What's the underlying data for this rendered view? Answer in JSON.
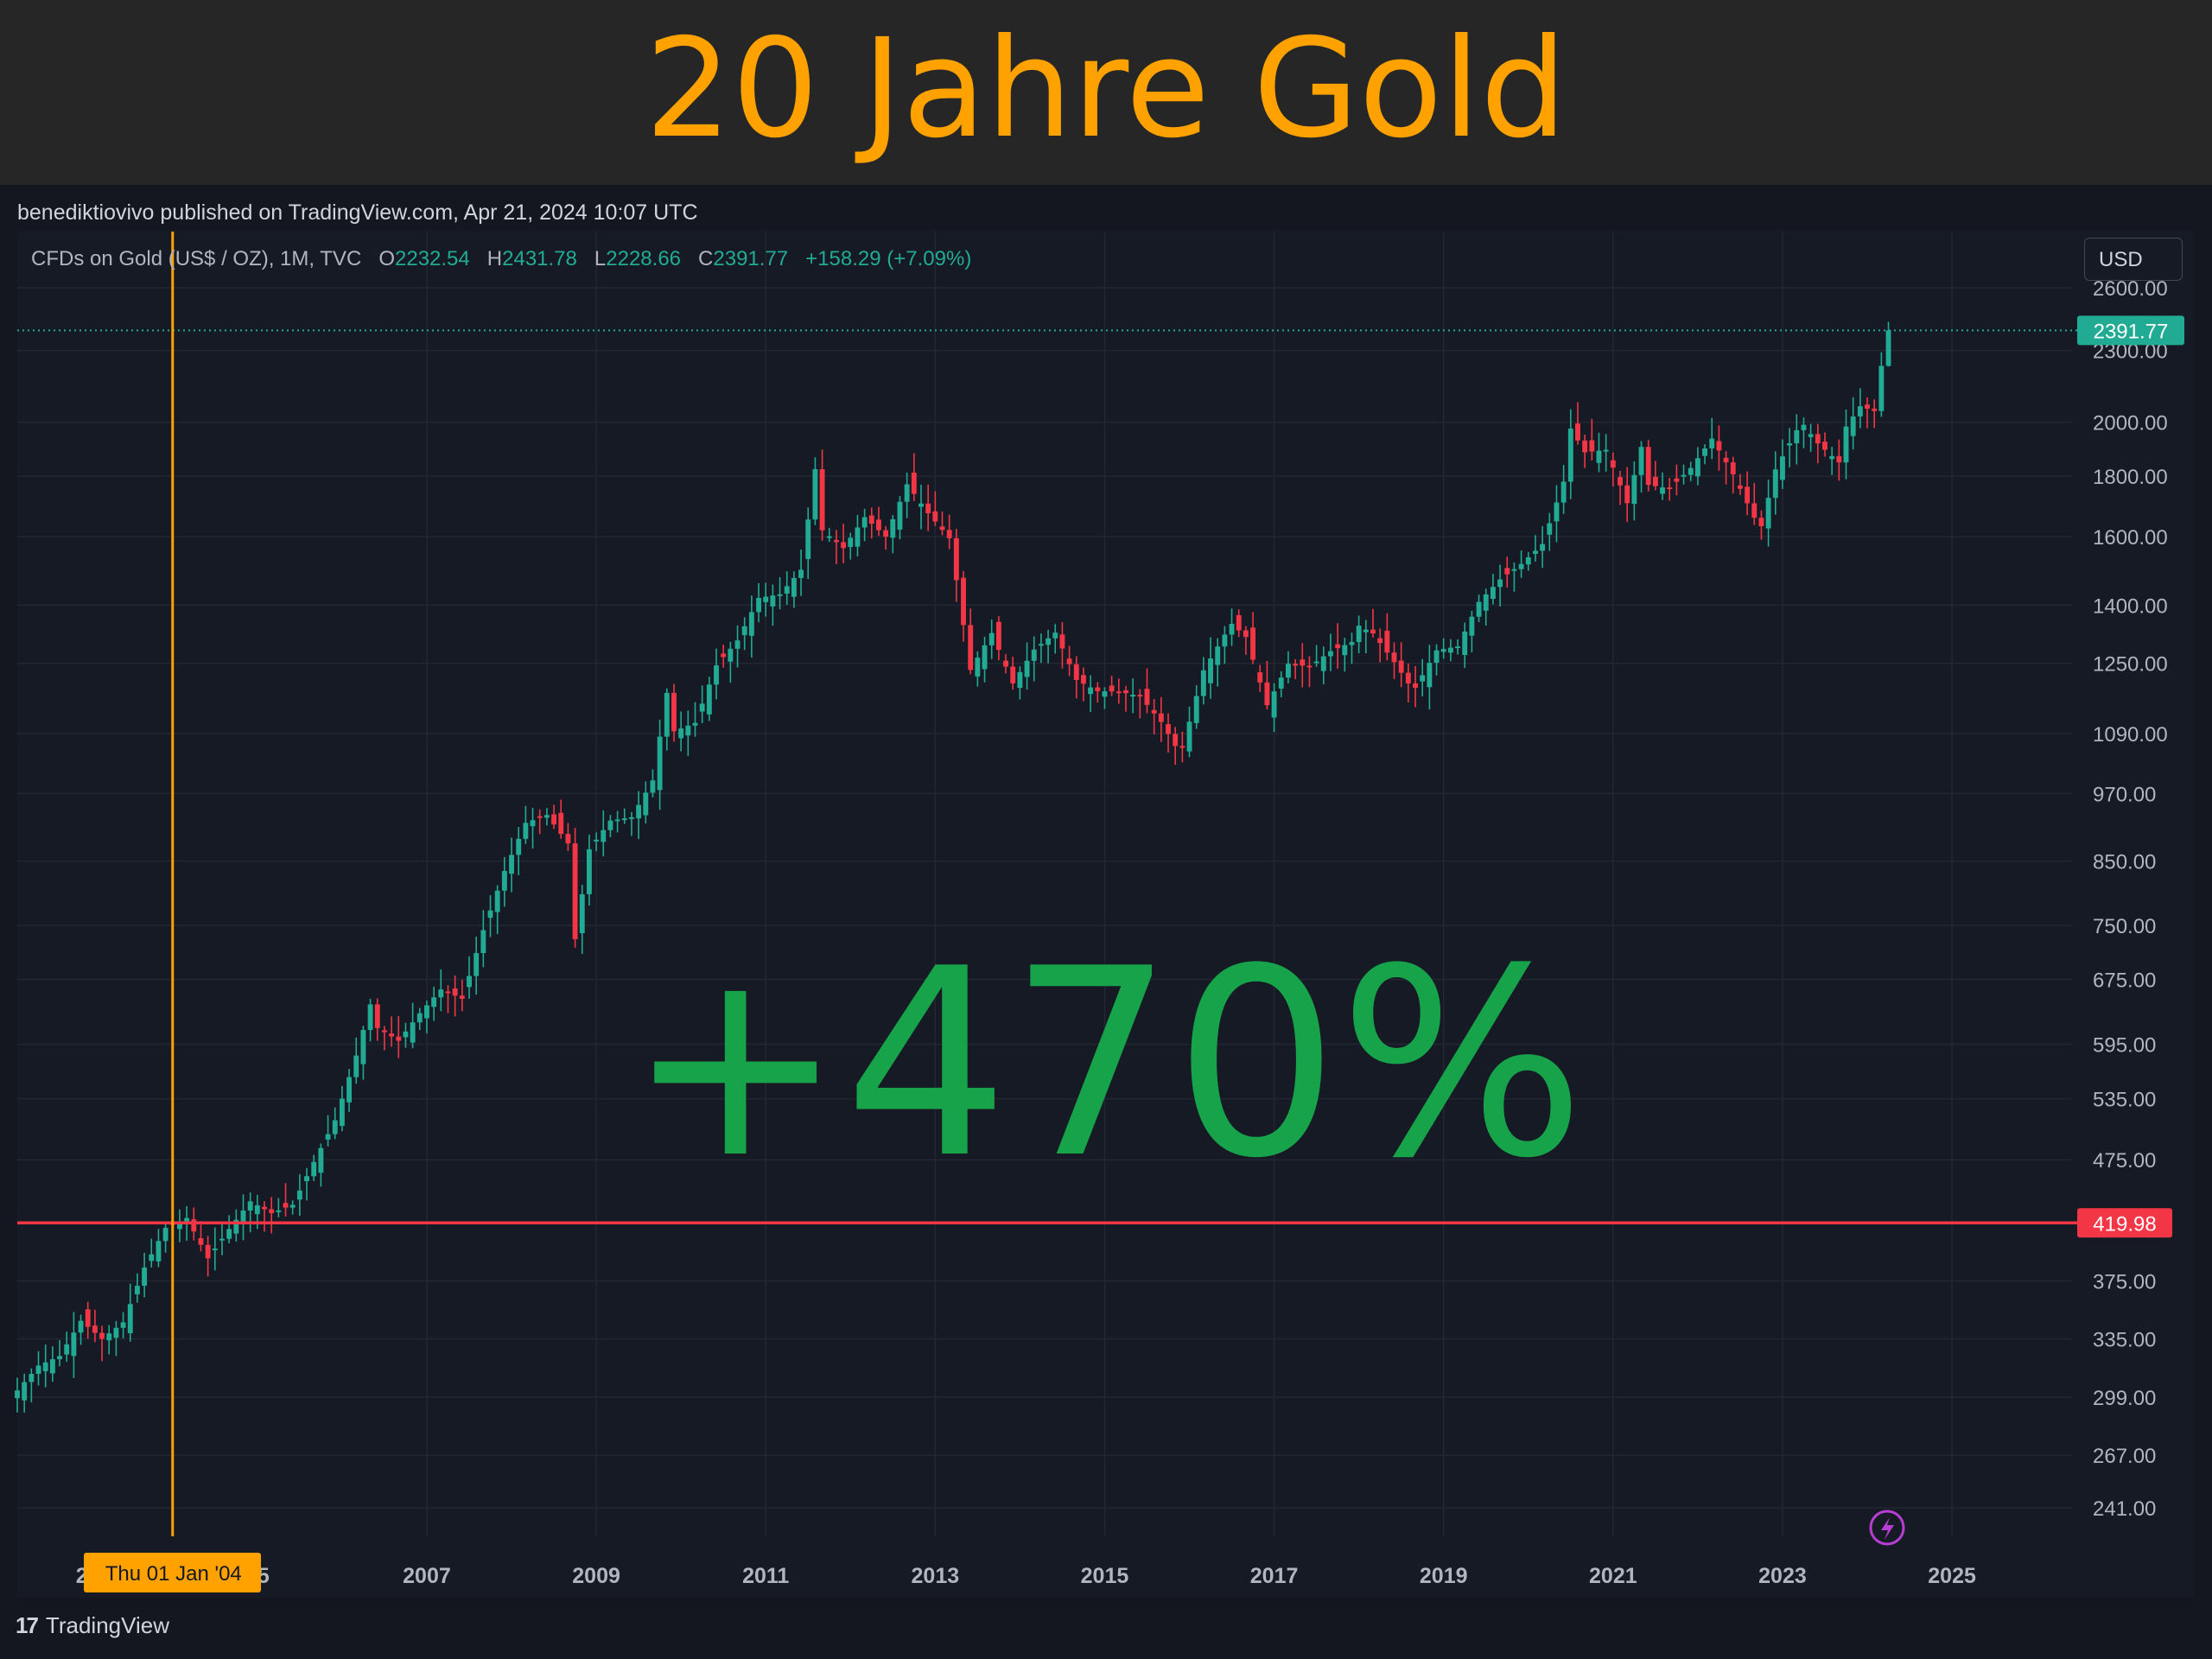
{
  "header": {
    "title": "20 Jahre Gold"
  },
  "publisher_line": "benediktiovivo published on TradingView.com, Apr 21, 2024 10:07 UTC",
  "legend": {
    "symbol": "CFDs on Gold (US$ / OZ), 1M, TVC",
    "open_label": "O",
    "open": "2232.54",
    "high_label": "H",
    "high": "2431.78",
    "low_label": "L",
    "low": "2228.66",
    "close_label": "C",
    "close": "2391.77",
    "change": "+158.29 (+7.09%)"
  },
  "currency_button": "USD",
  "brand": {
    "logo_text": "TradingView"
  },
  "colors": {
    "up": "#22ab94",
    "down": "#f23645",
    "accent": "#ffa200",
    "horizontal_line": "#f23645",
    "big_text": "#16a34a"
  },
  "chart_data": {
    "type": "candlestick",
    "interval": "1M",
    "y_scale": "log",
    "x_range": [
      "2002-03",
      "2026-06"
    ],
    "ylim": [
      228,
      2900
    ],
    "y_ticks": [
      "241.00",
      "267.00",
      "299.00",
      "335.00",
      "375.00",
      "419.98",
      "475.00",
      "535.00",
      "595.00",
      "675.00",
      "750.00",
      "850.00",
      "970.00",
      "1090.00",
      "1250.00",
      "1400.00",
      "1600.00",
      "1800.00",
      "2000.00",
      "2300.00",
      "2600.00"
    ],
    "x_ticks": [
      {
        "date": "2007-01",
        "label": "2007"
      },
      {
        "date": "2009-01",
        "label": "2009"
      },
      {
        "date": "2011-01",
        "label": "2011"
      },
      {
        "date": "2013-01",
        "label": "2013"
      },
      {
        "date": "2015-01",
        "label": "2015"
      },
      {
        "date": "2017-01",
        "label": "2017"
      },
      {
        "date": "2019-01",
        "label": "2019"
      },
      {
        "date": "2021-01",
        "label": "2021"
      },
      {
        "date": "2023-01",
        "label": "2023"
      },
      {
        "date": "2025-01",
        "label": "2025"
      }
    ],
    "x_tick_partial_labels": [
      {
        "date": "2003-01",
        "label": "20"
      },
      {
        "date": "2005-01",
        "label": "05"
      }
    ],
    "closes": [
      {
        "date": "2002-03",
        "value": 303
      },
      {
        "date": "2002-06",
        "value": 318
      },
      {
        "date": "2002-09",
        "value": 324
      },
      {
        "date": "2002-12",
        "value": 347
      },
      {
        "date": "2003-03",
        "value": 335
      },
      {
        "date": "2003-06",
        "value": 346
      },
      {
        "date": "2003-09",
        "value": 385
      },
      {
        "date": "2003-12",
        "value": 416
      },
      {
        "date": "2004-03",
        "value": 424
      },
      {
        "date": "2004-06",
        "value": 392
      },
      {
        "date": "2004-09",
        "value": 415
      },
      {
        "date": "2004-12",
        "value": 438
      },
      {
        "date": "2005-03",
        "value": 428
      },
      {
        "date": "2005-06",
        "value": 435
      },
      {
        "date": "2005-09",
        "value": 473
      },
      {
        "date": "2005-12",
        "value": 513
      },
      {
        "date": "2006-03",
        "value": 582
      },
      {
        "date": "2006-05",
        "value": 643
      },
      {
        "date": "2006-06",
        "value": 614
      },
      {
        "date": "2006-09",
        "value": 599
      },
      {
        "date": "2006-12",
        "value": 632
      },
      {
        "date": "2007-03",
        "value": 662
      },
      {
        "date": "2007-06",
        "value": 650
      },
      {
        "date": "2007-09",
        "value": 743
      },
      {
        "date": "2007-12",
        "value": 834
      },
      {
        "date": "2008-03",
        "value": 916
      },
      {
        "date": "2008-06",
        "value": 930
      },
      {
        "date": "2008-09",
        "value": 880
      },
      {
        "date": "2008-10",
        "value": 730
      },
      {
        "date": "2008-12",
        "value": 870
      },
      {
        "date": "2009-03",
        "value": 920
      },
      {
        "date": "2009-06",
        "value": 926
      },
      {
        "date": "2009-09",
        "value": 995
      },
      {
        "date": "2009-11",
        "value": 1180
      },
      {
        "date": "2009-12",
        "value": 1095
      },
      {
        "date": "2010-03",
        "value": 1113
      },
      {
        "date": "2010-06",
        "value": 1245
      },
      {
        "date": "2010-09",
        "value": 1307
      },
      {
        "date": "2010-12",
        "value": 1420
      },
      {
        "date": "2011-03",
        "value": 1430
      },
      {
        "date": "2011-06",
        "value": 1500
      },
      {
        "date": "2011-08",
        "value": 1825
      },
      {
        "date": "2011-09",
        "value": 1620
      },
      {
        "date": "2011-12",
        "value": 1565
      },
      {
        "date": "2012-03",
        "value": 1662
      },
      {
        "date": "2012-06",
        "value": 1600
      },
      {
        "date": "2012-09",
        "value": 1772
      },
      {
        "date": "2012-12",
        "value": 1675
      },
      {
        "date": "2013-03",
        "value": 1595
      },
      {
        "date": "2013-04",
        "value": 1470
      },
      {
        "date": "2013-06",
        "value": 1234
      },
      {
        "date": "2013-09",
        "value": 1326
      },
      {
        "date": "2013-12",
        "value": 1202
      },
      {
        "date": "2014-03",
        "value": 1284
      },
      {
        "date": "2014-06",
        "value": 1327
      },
      {
        "date": "2014-09",
        "value": 1210
      },
      {
        "date": "2014-12",
        "value": 1184
      },
      {
        "date": "2015-03",
        "value": 1183
      },
      {
        "date": "2015-06",
        "value": 1172
      },
      {
        "date": "2015-09",
        "value": 1115
      },
      {
        "date": "2015-11",
        "value": 1064
      },
      {
        "date": "2015-12",
        "value": 1061
      },
      {
        "date": "2016-03",
        "value": 1233
      },
      {
        "date": "2016-06",
        "value": 1322
      },
      {
        "date": "2016-07",
        "value": 1350
      },
      {
        "date": "2016-09",
        "value": 1316
      },
      {
        "date": "2016-12",
        "value": 1152
      },
      {
        "date": "2017-03",
        "value": 1249
      },
      {
        "date": "2017-06",
        "value": 1242
      },
      {
        "date": "2017-09",
        "value": 1280
      },
      {
        "date": "2017-12",
        "value": 1303
      },
      {
        "date": "2018-01",
        "value": 1345
      },
      {
        "date": "2018-03",
        "value": 1325
      },
      {
        "date": "2018-06",
        "value": 1253
      },
      {
        "date": "2018-08",
        "value": 1202
      },
      {
        "date": "2018-09",
        "value": 1192
      },
      {
        "date": "2018-12",
        "value": 1282
      },
      {
        "date": "2019-03",
        "value": 1292
      },
      {
        "date": "2019-06",
        "value": 1409
      },
      {
        "date": "2019-09",
        "value": 1472
      },
      {
        "date": "2019-12",
        "value": 1517
      },
      {
        "date": "2020-03",
        "value": 1577
      },
      {
        "date": "2020-06",
        "value": 1781
      },
      {
        "date": "2020-07",
        "value": 1975
      },
      {
        "date": "2020-09",
        "value": 1886
      },
      {
        "date": "2020-12",
        "value": 1895
      },
      {
        "date": "2021-03",
        "value": 1708
      },
      {
        "date": "2021-05",
        "value": 1906
      },
      {
        "date": "2021-06",
        "value": 1770
      },
      {
        "date": "2021-09",
        "value": 1757
      },
      {
        "date": "2021-12",
        "value": 1829
      },
      {
        "date": "2022-03",
        "value": 1937
      },
      {
        "date": "2022-06",
        "value": 1807
      },
      {
        "date": "2022-09",
        "value": 1660
      },
      {
        "date": "2022-10",
        "value": 1633
      },
      {
        "date": "2022-12",
        "value": 1824
      },
      {
        "date": "2023-03",
        "value": 1969
      },
      {
        "date": "2023-04",
        "value": 1990
      },
      {
        "date": "2023-06",
        "value": 1919
      },
      {
        "date": "2023-09",
        "value": 1849
      },
      {
        "date": "2023-10",
        "value": 1983
      },
      {
        "date": "2023-12",
        "value": 2063
      },
      {
        "date": "2024-02",
        "value": 2044
      },
      {
        "date": "2024-03",
        "value": 2232
      },
      {
        "date": "2024-04",
        "value": 2391.77
      }
    ],
    "annotations": {
      "current_price_label": "2391.77",
      "horizontal_line_label": "419.98",
      "horizontal_line_value": 419.98,
      "vertical_line_date": "2004-01",
      "vertical_line_label": "Thu 01 Jan '04",
      "big_text": "+470%"
    }
  }
}
